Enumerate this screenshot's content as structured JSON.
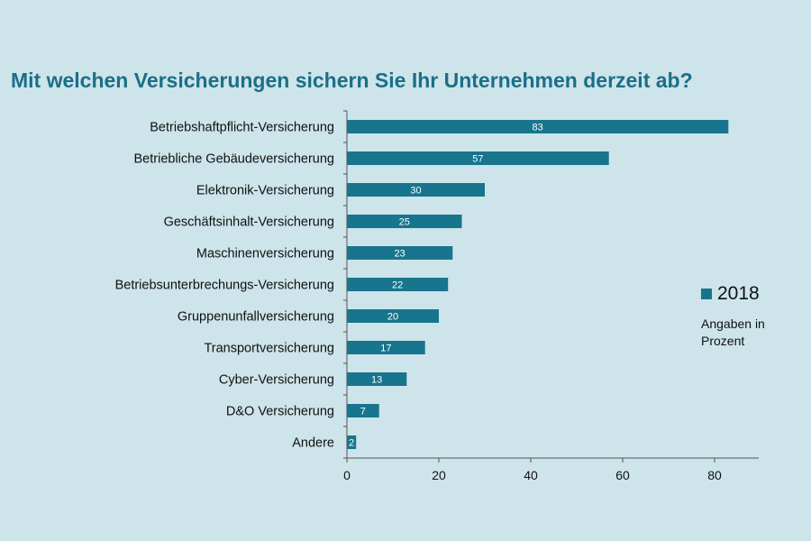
{
  "chart_data": {
    "type": "bar",
    "orientation": "horizontal",
    "title": "Mit welchen Versicherungen sichern Sie Ihr Unternehmen derzeit ab?",
    "categories": [
      "Betriebshaftpflicht-Versicherung",
      "Betriebliche Gebäudeversicherung",
      "Elektronik-Versicherung",
      "Geschäftsinhalt-Versicherung",
      "Maschinenversicherung",
      "Betriebsunterbrechungs-Versicherung",
      "Gruppenunfallversicherung",
      "Transportversicherung",
      "Cyber-Versicherung",
      "D&O Versicherung",
      "Andere"
    ],
    "series": [
      {
        "name": "2018",
        "values": [
          83,
          57,
          30,
          25,
          23,
          22,
          20,
          17,
          13,
          7,
          2
        ]
      }
    ],
    "xlim": [
      0,
      90
    ],
    "xticks": [
      0,
      20,
      40,
      60,
      80
    ],
    "legend_position": "right",
    "legend_note": "Angaben in Prozent",
    "grid": false
  },
  "colors": {
    "background": "#cde4ea",
    "bar": "#17758d",
    "title": "#1a6f87",
    "axis": "#555555"
  }
}
